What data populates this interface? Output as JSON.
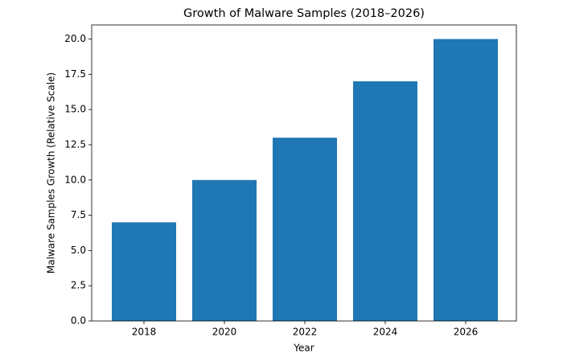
{
  "chart_data": {
    "type": "bar",
    "title": "Growth of Malware Samples (2018–2026)",
    "x_label": "Year",
    "y_label": "Malware Samples Growth (Relative Scale)",
    "categories": [
      "2018",
      "2020",
      "2022",
      "2024",
      "2026"
    ],
    "values": [
      7,
      10,
      13,
      17,
      20
    ],
    "color": "#1f77b4",
    "ylim": [
      0,
      21
    ],
    "yticks": [
      {
        "value": 0,
        "label": "0.0"
      },
      2.5,
      {
        "value": 5,
        "label": "5.0"
      },
      7.5,
      {
        "value": 10,
        "label": "10.0"
      },
      12.5,
      {
        "value": 15,
        "label": "15.0"
      },
      17.5,
      {
        "value": 20,
        "label": "20.0"
      }
    ],
    "grid": false
  }
}
